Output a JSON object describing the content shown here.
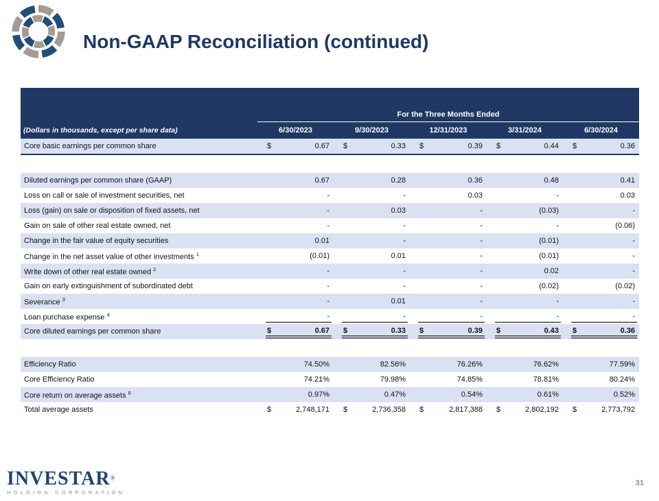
{
  "slide": {
    "title": "Non-GAAP Reconciliation (continued)",
    "page_number": "31"
  },
  "footer": {
    "brand_display": "INVESTAR",
    "registered_mark": "®",
    "brand_sub": "HOLDING CORPORATION"
  },
  "icons": {
    "swirl_logo": "investar-swirl-logo"
  },
  "colors": {
    "accent_navy": "#1F3864",
    "row_blue": "#D9E1F2",
    "logo_blue": "#1F4E79",
    "logo_gray": "#A49C92",
    "footer_gray": "#ABABAB",
    "page_number_gray": "#8E8E7E"
  },
  "table": {
    "caption": "(Dollars in thousands, except per share data)",
    "group_header": "For the Three Months Ended",
    "currency_symbol": "$",
    "columns": [
      "6/30/2023",
      "9/30/2023",
      "12/31/2023",
      "3/31/2024",
      "6/30/2024"
    ],
    "rows": [
      {
        "label": "Core basic earnings per common share",
        "dollar": true,
        "values": [
          "0.67",
          "0.33",
          "0.39",
          "0.44",
          "0.36"
        ],
        "bg": "blue",
        "rule": "navy-bottom"
      },
      {
        "spacer": true
      },
      {
        "label": "Diluted earnings per common share (GAAP)",
        "values": [
          "0.67",
          "0.28",
          "0.36",
          "0.48",
          "0.41"
        ],
        "bg": "blue"
      },
      {
        "label": "Loss on call or sale of investment securities, net",
        "values": [
          "-",
          "-",
          "0.03",
          "-",
          "0.03"
        ],
        "bg": "white"
      },
      {
        "label": "Loss (gain) on sale or disposition of fixed assets, net",
        "values": [
          "-",
          "0.03",
          "-",
          "(0.03)",
          "-"
        ],
        "bg": "blue"
      },
      {
        "label": "Gain on sale of other real estate owned, net",
        "values": [
          "-",
          "-",
          "-",
          "-",
          "(0.06)"
        ],
        "bg": "white"
      },
      {
        "label": "Change in the fair value of equity securities",
        "values": [
          "0.01",
          "-",
          "-",
          "(0.01)",
          "-"
        ],
        "bg": "blue"
      },
      {
        "label": "Change in the net asset value of other investments",
        "sup": "1",
        "values": [
          "(0.01)",
          "0.01",
          "-",
          "(0.01)",
          "-"
        ],
        "bg": "white"
      },
      {
        "label": "Write down of other real estate owned",
        "sup": "2",
        "values": [
          "-",
          "-",
          "-",
          "0.02",
          "-"
        ],
        "bg": "blue"
      },
      {
        "label": "Gain on early extinguishment of subordinated debt",
        "values": [
          "-",
          "-",
          "-",
          "(0.02)",
          "(0.02)"
        ],
        "bg": "white"
      },
      {
        "label": "Severance",
        "sup": "3",
        "values": [
          "-",
          "0.01",
          "-",
          "-",
          "-"
        ],
        "bg": "blue"
      },
      {
        "label": "Loan purchase expense",
        "sup": "4",
        "values": [
          "-",
          "-",
          "-",
          "-",
          "-"
        ],
        "bg": "white",
        "rule": "num-bottom"
      },
      {
        "label": "Core diluted earnings per common share",
        "dollar": true,
        "bold": true,
        "values": [
          "0.67",
          "0.33",
          "0.39",
          "0.43",
          "0.36"
        ],
        "bg": "blue",
        "rule": "num-double"
      },
      {
        "spacer": true
      },
      {
        "label": "Efficiency Ratio",
        "values": [
          "74.50%",
          "82.56%",
          "76.26%",
          "76.62%",
          "77.59%"
        ],
        "bg": "blue"
      },
      {
        "label": "Core Efficiency Ratio",
        "values": [
          "74.21%",
          "79.98%",
          "74.85%",
          "78.81%",
          "80.24%"
        ],
        "bg": "white"
      },
      {
        "label": "Core return on average assets",
        "sup": "6",
        "values": [
          "0.97%",
          "0.47%",
          "0.54%",
          "0.61%",
          "0.52%"
        ],
        "bg": "blue"
      },
      {
        "label": "Total average assets",
        "dollar": true,
        "values": [
          "2,748,171",
          "2,736,358",
          "2,817,388",
          "2,802,192",
          "2,773,792"
        ],
        "bg": "white"
      }
    ]
  }
}
